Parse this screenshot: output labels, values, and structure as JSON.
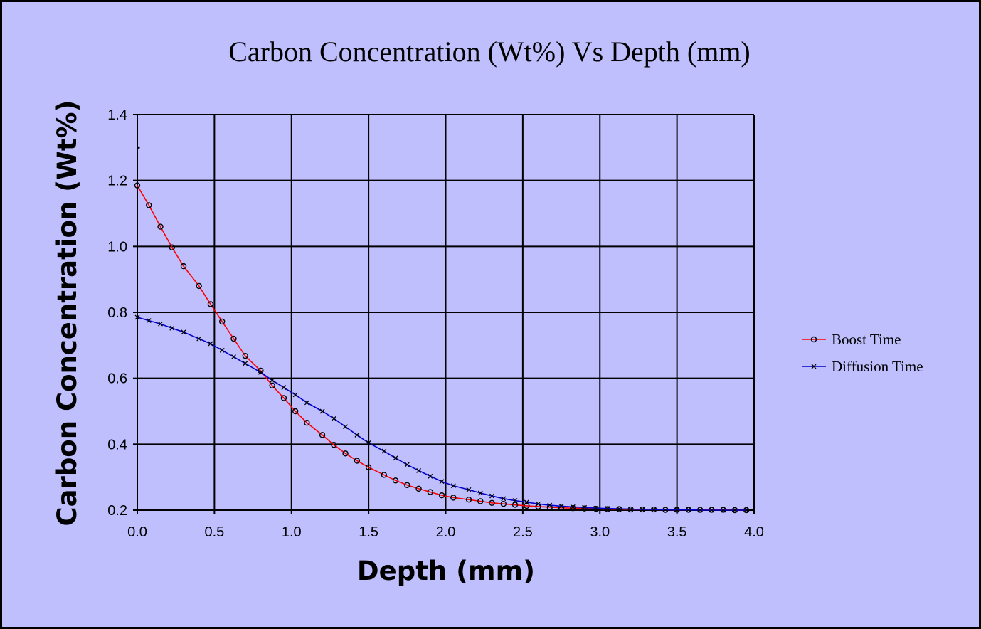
{
  "chart_data": {
    "type": "line",
    "title": "Carbon Concentration (Wt%) Vs Depth (mm)",
    "xlabel": "Depth (mm)",
    "ylabel": "Carbon Concentration (Wt%)",
    "xlim": [
      0,
      4
    ],
    "ylim": [
      0.2,
      1.4
    ],
    "xticks": [
      "0.0",
      "0.5",
      "1.0",
      "1.5",
      "2.0",
      "2.5",
      "3.0",
      "3.5",
      "4.0"
    ],
    "yticks": [
      "0.2",
      "0.4",
      "0.6",
      "0.8",
      "1.0",
      "1.2",
      "1.4"
    ],
    "grid": true,
    "legend_position": "right",
    "series": [
      {
        "name": "Boost Time",
        "color": "#ff0000",
        "marker": "circle",
        "x": [
          0.0,
          0.075,
          0.15,
          0.225,
          0.3,
          0.4,
          0.475,
          0.55,
          0.625,
          0.7,
          0.8,
          0.875,
          0.95,
          1.025,
          1.1,
          1.2,
          1.275,
          1.35,
          1.425,
          1.5,
          1.6,
          1.675,
          1.75,
          1.825,
          1.9,
          1.975,
          2.05,
          2.15,
          2.225,
          2.3,
          2.375,
          2.45,
          2.525,
          2.6,
          2.675,
          2.75,
          2.825,
          2.9,
          2.975,
          3.05,
          3.125,
          3.2,
          3.275,
          3.35,
          3.425,
          3.5,
          3.575,
          3.65,
          3.725,
          3.8,
          3.875,
          3.95
        ],
        "y": [
          1.185,
          1.125,
          1.06,
          0.997,
          0.94,
          0.88,
          0.825,
          0.772,
          0.72,
          0.668,
          0.623,
          0.578,
          0.54,
          0.5,
          0.465,
          0.428,
          0.398,
          0.372,
          0.35,
          0.33,
          0.307,
          0.29,
          0.276,
          0.265,
          0.255,
          0.245,
          0.238,
          0.232,
          0.227,
          0.222,
          0.219,
          0.216,
          0.213,
          0.211,
          0.209,
          0.207,
          0.206,
          0.205,
          0.204,
          0.203,
          0.203,
          0.202,
          0.202,
          0.202,
          0.201,
          0.201,
          0.201,
          0.201,
          0.201,
          0.201,
          0.2,
          0.2
        ]
      },
      {
        "name": "Diffusion Time",
        "color": "#0000cc",
        "marker": "x",
        "x": [
          0.0,
          0.075,
          0.15,
          0.225,
          0.3,
          0.4,
          0.475,
          0.55,
          0.625,
          0.7,
          0.8,
          0.875,
          0.95,
          1.025,
          1.1,
          1.2,
          1.275,
          1.35,
          1.425,
          1.5,
          1.6,
          1.675,
          1.75,
          1.825,
          1.9,
          1.975,
          2.05,
          2.15,
          2.225,
          2.3,
          2.375,
          2.45,
          2.525,
          2.6,
          2.675,
          2.75,
          2.825,
          2.9,
          2.975,
          3.05,
          3.125,
          3.2,
          3.275,
          3.35,
          3.425,
          3.5,
          3.575,
          3.65,
          3.725,
          3.8,
          3.875,
          3.95
        ],
        "y": [
          0.785,
          0.775,
          0.765,
          0.752,
          0.74,
          0.72,
          0.705,
          0.685,
          0.665,
          0.645,
          0.618,
          0.594,
          0.572,
          0.55,
          0.526,
          0.5,
          0.478,
          0.453,
          0.428,
          0.404,
          0.379,
          0.358,
          0.338,
          0.32,
          0.303,
          0.287,
          0.274,
          0.262,
          0.252,
          0.243,
          0.235,
          0.229,
          0.224,
          0.219,
          0.215,
          0.212,
          0.21,
          0.208,
          0.206,
          0.205,
          0.204,
          0.203,
          0.202,
          0.202,
          0.201,
          0.201,
          0.201,
          0.2,
          0.2,
          0.2,
          0.2,
          0.2
        ]
      }
    ],
    "annotations": [
      {
        "x": 0.0,
        "y": 1.3,
        "mark": "dot"
      }
    ]
  }
}
